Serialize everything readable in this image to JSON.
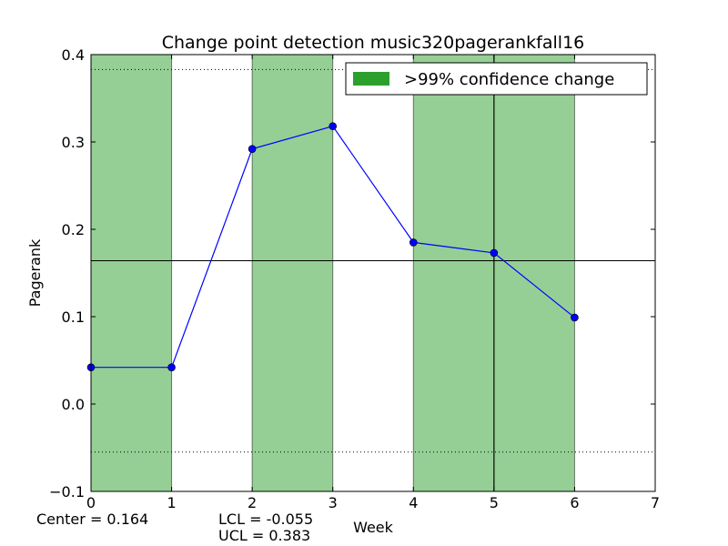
{
  "chart_data": {
    "type": "line",
    "title": "Change point detection music320pagerankfall16",
    "xlabel": "Week",
    "ylabel": "Pagerank",
    "xlim": [
      0,
      7
    ],
    "ylim": [
      -0.1,
      0.4
    ],
    "xticks": [
      0,
      1,
      2,
      3,
      4,
      5,
      6,
      7
    ],
    "xtick_labels": [
      "0",
      "1",
      "2",
      "3",
      "4",
      "5",
      "6",
      "7"
    ],
    "yticks": [
      -0.1,
      0.0,
      0.1,
      0.2,
      0.3,
      0.4
    ],
    "ytick_labels": [
      "−0.1",
      "0.0",
      "0.1",
      "0.2",
      "0.3",
      "0.4"
    ],
    "grid": false,
    "legend_position": "top-right",
    "series": [
      {
        "x": [
          0,
          1,
          2,
          3,
          4,
          5,
          6
        ],
        "values": [
          0.042,
          0.042,
          0.292,
          0.318,
          0.185,
          0.173,
          0.099
        ],
        "color": "#0000ff"
      }
    ],
    "center_line": 0.164,
    "lcl": -0.055,
    "ucl": 0.383,
    "change_vline_x": 5,
    "shaded_regions": [
      [
        0,
        1
      ],
      [
        2,
        3
      ],
      [
        4,
        5
      ],
      [
        5,
        6
      ]
    ],
    "shade_color": "#2ca02c",
    "legend_label": ">99% confidence change",
    "stats": {
      "center_text": "Center = 0.164",
      "lcl_text": "LCL = -0.055",
      "ucl_text": "UCL = 0.383"
    }
  }
}
